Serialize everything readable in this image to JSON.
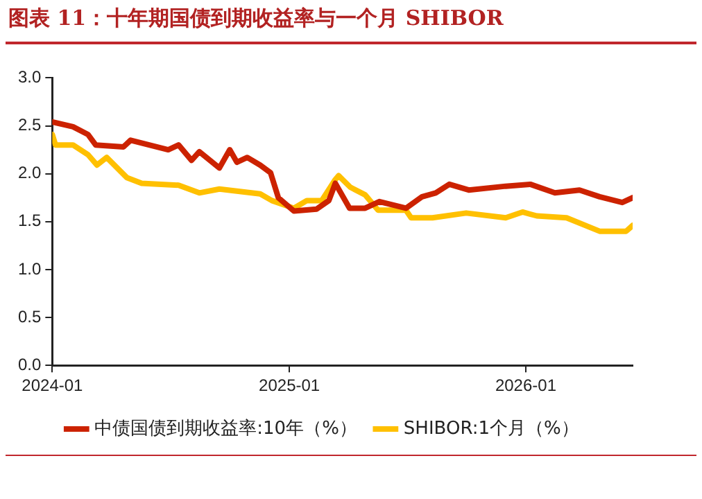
{
  "chart_data": {
    "type": "line",
    "title": "图表 11：十年期国债到期收益率与一个月 SHIBOR",
    "xlim": [
      "2024-01-01",
      "2026-06-15"
    ],
    "xticks": [
      "2024-01",
      "2025-01",
      "2026-01"
    ],
    "ylim": [
      0,
      3
    ],
    "yticks": [
      {
        "value": 0,
        "label": "0.0"
      },
      0.5,
      {
        "value": 1,
        "label": "1.0"
      },
      1.5,
      {
        "value": 2,
        "label": "2.0"
      },
      2.5,
      {
        "value": 3,
        "label": "3.0"
      }
    ],
    "grid": false,
    "legend": "bottom",
    "marker": "none",
    "line_style": "solid",
    "series": [
      {
        "name": "中债国债到期收益率:10年（%）",
        "color": "#cc2200",
        "x": [
          "2024-01-01",
          "2024-02-02",
          "2024-02-25",
          "2024-03-08",
          "2024-04-20",
          "2024-05-01",
          "2024-06-28",
          "2024-07-14",
          "2024-08-03",
          "2024-08-15",
          "2024-09-15",
          "2024-10-01",
          "2024-10-12",
          "2024-10-28",
          "2024-11-17",
          "2024-12-03",
          "2024-12-15",
          "2025-01-08",
          "2025-02-12",
          "2025-03-03",
          "2025-03-13",
          "2025-04-04",
          "2025-04-28",
          "2025-05-20",
          "2025-06-30",
          "2025-07-25",
          "2025-08-15",
          "2025-09-05",
          "2025-10-05",
          "2025-12-01",
          "2026-01-08",
          "2026-02-15",
          "2026-03-25",
          "2026-04-25",
          "2026-05-30",
          "2026-06-15"
        ],
        "values": [
          2.54,
          2.49,
          2.41,
          2.3,
          2.28,
          2.35,
          2.25,
          2.3,
          2.14,
          2.23,
          2.06,
          2.25,
          2.12,
          2.17,
          2.09,
          2.01,
          1.75,
          1.61,
          1.63,
          1.72,
          1.9,
          1.64,
          1.64,
          1.71,
          1.64,
          1.76,
          1.8,
          1.89,
          1.83,
          1.87,
          1.89,
          1.8,
          1.83,
          1.76,
          1.7,
          1.75
        ]
      },
      {
        "name": "SHIBOR:1个月（%）",
        "color": "#ffc000",
        "x": [
          "2024-01-01",
          "2024-01-06",
          "2024-02-02",
          "2024-02-25",
          "2024-03-10",
          "2024-03-25",
          "2024-04-25",
          "2024-05-18",
          "2024-07-14",
          "2024-08-15",
          "2024-09-15",
          "2024-11-17",
          "2024-12-05",
          "2025-01-08",
          "2025-01-28",
          "2025-02-20",
          "2025-03-12",
          "2025-03-18",
          "2025-04-05",
          "2025-04-28",
          "2025-05-18",
          "2025-06-30",
          "2025-07-08",
          "2025-08-10",
          "2025-10-01",
          "2025-12-01",
          "2025-12-27",
          "2026-01-18",
          "2026-03-05",
          "2026-04-25",
          "2026-06-05",
          "2026-06-15"
        ],
        "values": [
          2.41,
          2.3,
          2.3,
          2.2,
          2.09,
          2.17,
          1.96,
          1.9,
          1.88,
          1.8,
          1.84,
          1.79,
          1.72,
          1.64,
          1.72,
          1.72,
          1.93,
          1.98,
          1.86,
          1.78,
          1.62,
          1.62,
          1.54,
          1.54,
          1.59,
          1.54,
          1.6,
          1.56,
          1.54,
          1.4,
          1.4,
          1.46
        ]
      }
    ]
  }
}
